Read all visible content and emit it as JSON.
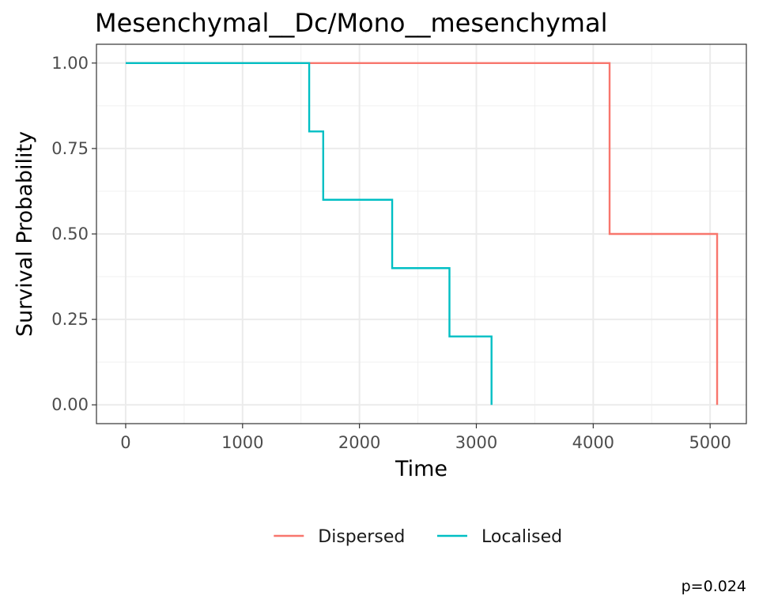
{
  "chart_data": {
    "type": "line",
    "title": "Mesenchymal__Dc/Mono__mesenchymal",
    "xlabel": "Time",
    "ylabel": "Survival Probability",
    "xlim": [
      -250,
      5310
    ],
    "ylim": [
      -0.055,
      1.055
    ],
    "xticks": [
      0,
      1000,
      2000,
      3000,
      4000,
      5000
    ],
    "yticks": [
      0,
      0.25,
      0.5,
      0.75,
      1
    ],
    "xtick_labels": [
      "0",
      "1000",
      "2000",
      "3000",
      "4000",
      "5000"
    ],
    "ytick_labels": [
      "0.00",
      "0.25",
      "0.50",
      "0.75",
      "1.00"
    ],
    "grid": true,
    "legend_position": "bottom",
    "annotation": "p=0.024",
    "series": [
      {
        "name": "Dispersed",
        "color": "#F8766D",
        "step": true,
        "x": [
          0,
          4140,
          5060
        ],
        "y": [
          1.0,
          0.5,
          0.0
        ]
      },
      {
        "name": "Localised",
        "color": "#00BFC4",
        "step": true,
        "x": [
          0,
          1570,
          1690,
          2280,
          2770,
          3130
        ],
        "y": [
          1.0,
          0.8,
          0.6,
          0.4,
          0.2,
          0.0
        ]
      }
    ]
  }
}
